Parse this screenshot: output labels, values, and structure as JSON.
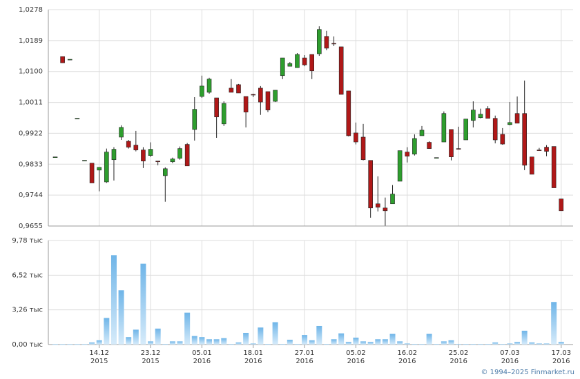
{
  "chart_data": [
    {
      "type": "candlestick",
      "up_color": "#2e9e2e",
      "down_color": "#b01818",
      "grid": true,
      "ylim": [
        0.9655,
        1.0278
      ],
      "yticks": [
        {
          "value": 0.9655,
          "label": "0,9655"
        },
        {
          "value": 0.9744,
          "label": "0,9744"
        },
        {
          "value": 0.9833,
          "label": "0,9833"
        },
        {
          "value": 0.9922,
          "label": "0,9922"
        },
        {
          "value": 1.0011,
          "label": "1,0011"
        },
        {
          "value": 1.01,
          "label": "1,0100"
        },
        {
          "value": 1.0189,
          "label": "1,0189"
        },
        {
          "value": 1.0278,
          "label": "1,0278"
        }
      ],
      "open": [
        0.9854,
        1.0143,
        1.0135,
        0.9965,
        0.9844,
        0.9836,
        0.9816,
        0.9782,
        0.9846,
        0.9911,
        0.9899,
        0.9888,
        0.9874,
        0.9858,
        0.9842,
        0.98,
        0.984,
        0.985,
        0.989,
        0.9933,
        1.0028,
        1.004,
        1.0024,
        0.9949,
        1.0052,
        1.0062,
        1.0028,
        1.0034,
        1.0052,
        1.0042,
        1.0014,
        1.0088,
        1.0115,
        1.0111,
        1.0139,
        1.0149,
        1.0151,
        1.0201,
        1.0181,
        1.0171,
        1.0044,
        0.9923,
        0.9911,
        0.9844,
        0.9719,
        0.9707,
        0.9719,
        0.9784,
        0.9868,
        0.9862,
        0.9915,
        0.9896,
        0.9852,
        0.9897,
        0.9933,
        0.9878,
        0.9903,
        0.9959,
        0.9967,
        0.9993,
        0.9965,
        0.9919,
        0.9947,
        0.9979,
        0.9979,
        0.9854,
        0.9874,
        0.9882,
        0.9884,
        0.9733
      ],
      "high": [
        0.9854,
        1.0143,
        1.0135,
        0.9965,
        0.9844,
        0.9836,
        0.9824,
        0.9878,
        0.9882,
        0.9945,
        0.9903,
        0.9929,
        0.9882,
        0.9896,
        0.9842,
        0.9824,
        0.9852,
        0.9884,
        0.9894,
        1.0026,
        1.0088,
        1.0082,
        1.0024,
        1.0014,
        1.0078,
        1.0064,
        1.0028,
        1.0036,
        1.0058,
        1.0042,
        1.0046,
        1.0139,
        1.0127,
        1.0153,
        1.0147,
        1.0149,
        1.023,
        1.0217,
        1.0201,
        1.0171,
        1.0044,
        0.9953,
        0.9949,
        0.9844,
        0.9798,
        0.9737,
        0.9773,
        0.9872,
        0.9882,
        0.9919,
        0.9943,
        0.9899,
        0.9852,
        0.9985,
        0.9933,
        0.9941,
        0.9963,
        1.0014,
        0.9993,
        1.0,
        0.9973,
        0.9937,
        1.0012,
        1.0028,
        1.0074,
        0.9854,
        0.988,
        0.9888,
        0.9884,
        0.9733
      ],
      "low": [
        0.9854,
        1.0125,
        1.0135,
        0.9965,
        0.9844,
        0.9779,
        0.9755,
        0.9779,
        0.9786,
        0.9903,
        0.9878,
        0.987,
        0.9822,
        0.9854,
        0.983,
        0.9725,
        0.9836,
        0.9846,
        0.9828,
        0.9901,
        1.0024,
        1.0036,
        0.9909,
        0.9943,
        1.004,
        1.0038,
        0.9939,
        1.0026,
        0.9975,
        0.9983,
        1.0012,
        1.0078,
        1.0115,
        1.0111,
        1.0115,
        1.0078,
        1.0145,
        1.0161,
        1.0173,
        1.0034,
        0.9913,
        0.989,
        0.9844,
        0.9679,
        0.9697,
        0.9656,
        0.9719,
        0.9784,
        0.9838,
        0.9858,
        0.9915,
        0.9878,
        0.9852,
        0.9897,
        0.9844,
        0.9876,
        0.9903,
        0.9939,
        0.9965,
        0.9965,
        0.9893,
        0.9889,
        0.9945,
        0.9951,
        0.9816,
        0.9804,
        0.9872,
        0.9856,
        0.9765,
        0.9699
      ],
      "close": [
        0.9854,
        1.0125,
        1.0135,
        0.9965,
        0.9844,
        0.9779,
        0.9824,
        0.9868,
        0.9876,
        0.9939,
        0.9882,
        0.9874,
        0.9842,
        0.9876,
        0.984,
        0.982,
        0.9848,
        0.9878,
        0.9828,
        0.9991,
        1.0058,
        1.0078,
        0.9969,
        1.0008,
        1.004,
        1.0038,
        0.9983,
        1.0032,
        1.0012,
        0.9989,
        1.0046,
        1.0139,
        1.0123,
        1.0149,
        1.0119,
        1.0102,
        1.0221,
        1.0167,
        1.0179,
        1.0034,
        0.9915,
        0.9897,
        0.9846,
        0.9707,
        0.9709,
        0.9699,
        0.9747,
        0.9872,
        0.9856,
        0.9907,
        0.9931,
        0.9878,
        0.9852,
        0.9979,
        0.9854,
        0.9876,
        0.9963,
        0.9989,
        0.9977,
        0.9965,
        0.9903,
        0.9891,
        0.9953,
        0.9951,
        0.983,
        0.9804,
        0.9872,
        0.987,
        0.9765,
        0.9699
      ]
    },
    {
      "type": "bar",
      "color": "#7fbde9",
      "grid": true,
      "ylim": [
        0,
        9.78
      ],
      "yticks": [
        {
          "value": 0,
          "label": "0,00 тыс"
        },
        {
          "value": 3.26,
          "label": "3,26 тыс"
        },
        {
          "value": 6.52,
          "label": "6,52 тыс"
        },
        {
          "value": 9.78,
          "label": "9,78 тыс"
        }
      ],
      "categories": [
        null,
        null,
        null,
        null,
        null,
        null,
        "14.12\n2015",
        null,
        null,
        null,
        null,
        null,
        null,
        "23.12\n2015",
        null,
        null,
        null,
        null,
        null,
        null,
        "05.01\n2016",
        null,
        null,
        null,
        null,
        null,
        null,
        "18.01\n2016",
        null,
        null,
        null,
        null,
        null,
        null,
        "27.01\n2016",
        null,
        null,
        null,
        null,
        null,
        null,
        "05.02\n2016",
        null,
        null,
        null,
        null,
        null,
        null,
        "16.02\n2016",
        null,
        null,
        null,
        null,
        null,
        null,
        "25.02\n2016",
        null,
        null,
        null,
        null,
        null,
        null,
        "07.03\n2016",
        null,
        null,
        null,
        null,
        null,
        null,
        "17.03\n2016"
      ],
      "values": [
        0.02,
        0.02,
        0.02,
        0.02,
        0.02,
        0.2,
        0.4,
        2.5,
        8.4,
        5.1,
        0.7,
        1.4,
        7.6,
        0.3,
        1.5,
        0.05,
        0.3,
        0.3,
        3.0,
        0.8,
        0.7,
        0.5,
        0.5,
        0.6,
        0.05,
        0.2,
        1.1,
        0.1,
        1.6,
        0.05,
        2.1,
        0.05,
        0.45,
        0.05,
        0.9,
        0.4,
        1.75,
        0.05,
        0.5,
        1.05,
        0.25,
        0.65,
        0.3,
        0.25,
        0.5,
        0.5,
        1.0,
        0.3,
        0.1,
        0.05,
        0.05,
        1.0,
        0.05,
        0.3,
        0.4,
        0.05,
        0.05,
        0.05,
        0.05,
        0.05,
        0.2,
        0.05,
        0.1,
        0.25,
        1.3,
        0.2,
        0.1,
        0.1,
        4.0,
        0.25
      ]
    }
  ],
  "footer": "© 1994–2025 Finmarket.ru"
}
